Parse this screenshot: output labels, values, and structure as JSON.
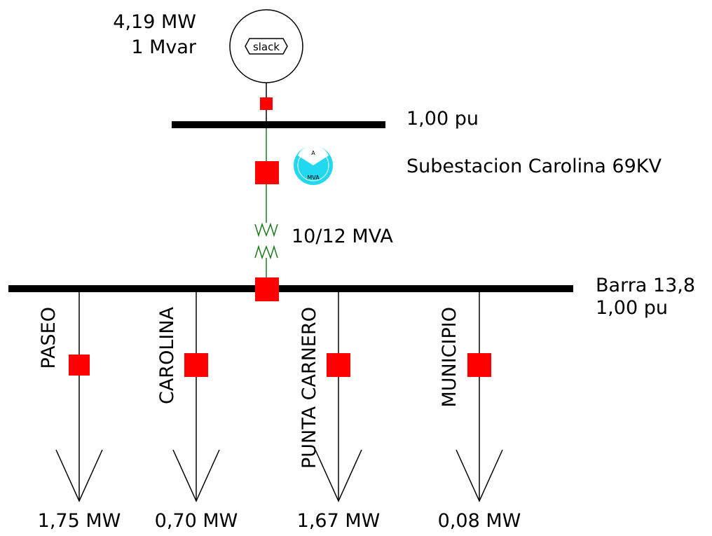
{
  "generator": {
    "mw": "4,19 MW",
    "mvar": "1 Mvar",
    "label": "slack"
  },
  "buses": [
    {
      "voltage": "1,00 pu",
      "name": "Subestacion Carolina 69KV"
    },
    {
      "name": "Barra 13,8",
      "voltage": "1,00 pu"
    }
  ],
  "transformer": {
    "rating": "10/12 MVA"
  },
  "gauge": {
    "top": "A",
    "bottom": "MVA"
  },
  "loads": [
    {
      "name": "PASEO",
      "power": "1,75 MW"
    },
    {
      "name": "CAROLINA",
      "power": "0,70 MW"
    },
    {
      "name": "PUNTA CARNERO",
      "power": "1,67 MW"
    },
    {
      "name": "MUNICIPIO",
      "power": "0,08 MW"
    }
  ]
}
